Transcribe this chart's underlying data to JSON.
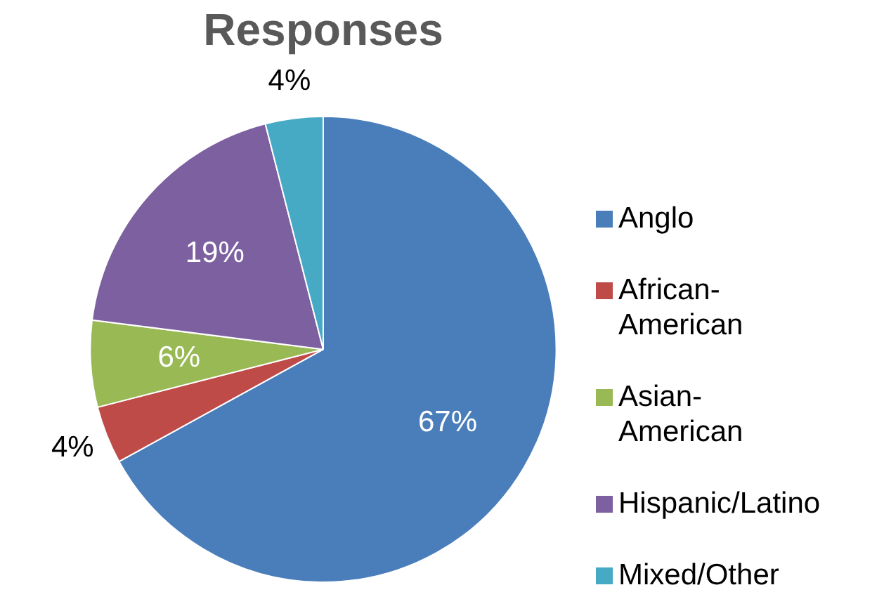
{
  "chart_data": {
    "type": "pie",
    "title": "Responses",
    "categories": [
      "Anglo",
      "African-American",
      "Asian-American",
      "Hispanic/Latino",
      "Mixed/Other"
    ],
    "values": [
      67,
      4,
      6,
      19,
      4
    ],
    "colors": [
      "#4a7ebb",
      "#be4b48",
      "#98b954",
      "#7d60a0",
      "#46aac5"
    ],
    "value_labels": [
      "67%",
      "4%",
      "6%",
      "19%",
      "4%"
    ],
    "legend": "right"
  }
}
